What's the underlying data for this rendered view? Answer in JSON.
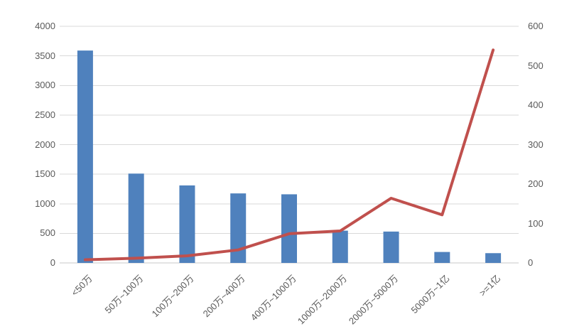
{
  "chart_data": {
    "type": "combo",
    "title": "",
    "grid": true,
    "legend": "none",
    "categories": [
      "<50万",
      "50万~100万",
      "100万~200万",
      "200万~400万",
      "400万~1000万",
      "1000万~2000万",
      "2000万~5000万",
      "5000万~1亿",
      ">=1亿"
    ],
    "series": [
      {
        "name": "bar-series",
        "type": "bar",
        "axis": "left",
        "color": "#4f81bd",
        "values": [
          3590,
          1510,
          1310,
          1175,
          1160,
          545,
          530,
          185,
          165
        ]
      },
      {
        "name": "line-series",
        "type": "line",
        "axis": "right",
        "color": "#c0504d",
        "values": [
          8,
          12,
          18,
          33,
          74,
          81,
          164,
          122,
          540
        ]
      }
    ],
    "left_axis": {
      "min": 0,
      "max": 4000,
      "step": 500,
      "ticks": [
        "4000",
        "3500",
        "3000",
        "2500",
        "2000",
        "1500",
        "1000",
        "500",
        "0"
      ]
    },
    "right_axis": {
      "min": 0,
      "max": 600,
      "step": 100,
      "ticks": [
        "600",
        "500",
        "400",
        "300",
        "200",
        "100",
        "0"
      ]
    },
    "colors": {
      "gridline": "#d9d9d9",
      "axis_line": "#c9c9c9",
      "tick_label": "#595959",
      "background": "#ffffff"
    }
  }
}
